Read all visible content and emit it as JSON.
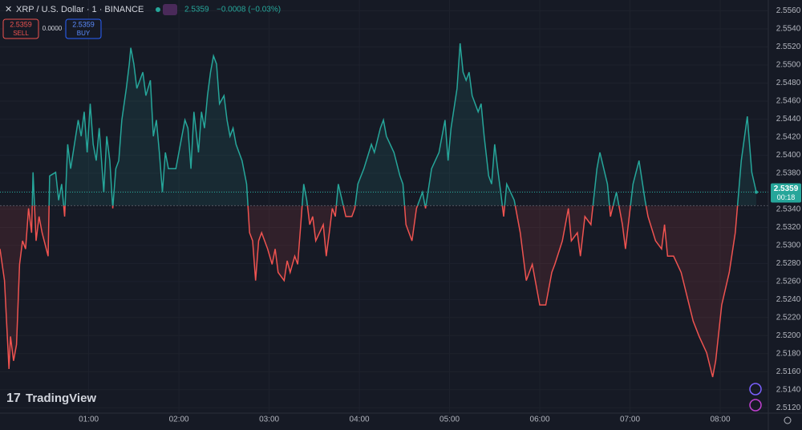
{
  "chart_data": {
    "type": "baseline",
    "title": "XRP / U.S. Dollar · 1 · BINANCE",
    "price": 2.5359,
    "change": "−0.0008 (−0.03%)",
    "sell": {
      "price": 2.5359,
      "label": "SELL"
    },
    "spread": "0.0000",
    "buy": {
      "price": 2.5359,
      "label": "BUY"
    },
    "last_price": 2.5359,
    "countdown": "00:18",
    "watermark": "TradingView",
    "baseline": 2.5344,
    "color_up": "#26a69a",
    "color_down": "#ef5350",
    "grid": true,
    "x": [
      "00:01",
      "00:04",
      "00:07",
      "00:08",
      "00:10",
      "00:12",
      "00:14",
      "00:16",
      "00:18",
      "00:20",
      "00:22",
      "00:23",
      "00:25",
      "00:27",
      "00:29",
      "00:33",
      "00:34",
      "00:38",
      "00:40",
      "00:42",
      "00:44",
      "00:46",
      "00:48",
      "00:53",
      "00:55",
      "00:57",
      "00:59",
      "01:01",
      "01:03",
      "01:05",
      "01:07",
      "01:10",
      "01:12",
      "01:14",
      "01:16",
      "01:18",
      "01:20",
      "01:22",
      "01:25",
      "01:27",
      "01:28",
      "01:30",
      "01:32",
      "01:34",
      "01:36",
      "01:38",
      "01:41",
      "01:43",
      "01:45",
      "01:47",
      "01:49",
      "01:51",
      "01:53",
      "01:58",
      "02:02",
      "02:04",
      "02:06",
      "02:08",
      "02:10",
      "02:13",
      "02:15",
      "02:17",
      "02:19",
      "02:21",
      "02:23",
      "02:25",
      "02:27",
      "02:30",
      "02:32",
      "02:34",
      "02:36",
      "02:38",
      "02:42",
      "02:45",
      "02:47",
      "02:49",
      "02:51",
      "02:53",
      "02:55",
      "02:59",
      "03:02",
      "03:04",
      "03:06",
      "03:10",
      "03:12",
      "03:14",
      "03:17",
      "03:19",
      "03:21",
      "03:23",
      "03:25",
      "03:27",
      "03:29",
      "03:31",
      "03:36",
      "03:38",
      "03:40",
      "03:42",
      "03:44",
      "03:46",
      "03:51",
      "03:55",
      "03:57",
      "03:59",
      "04:03",
      "04:08",
      "04:10",
      "04:14",
      "04:16",
      "04:18",
      "04:23",
      "04:27",
      "04:29",
      "04:31",
      "04:35",
      "04:38",
      "04:42",
      "04:44",
      "04:48",
      "04:53",
      "04:57",
      "04:59",
      "05:01",
      "05:05",
      "05:07",
      "05:09",
      "05:11",
      "05:13",
      "05:15",
      "05:19",
      "05:21",
      "05:23",
      "05:26",
      "05:28",
      "05:30",
      "05:32",
      "05:34",
      "05:36",
      "05:38",
      "05:43",
      "05:47",
      "05:51",
      "05:55",
      "06:00",
      "06:04",
      "06:08",
      "06:10",
      "06:15",
      "06:19",
      "06:21",
      "06:25",
      "06:27",
      "06:30",
      "06:34",
      "06:38",
      "06:40",
      "06:45",
      "06:47",
      "06:51",
      "06:55",
      "06:57",
      "07:02",
      "07:06",
      "07:10",
      "07:12",
      "07:17",
      "07:21",
      "07:23",
      "07:25",
      "07:29",
      "07:34",
      "07:38",
      "07:42",
      "07:46",
      "07:51",
      "07:55",
      "07:57",
      "08:01",
      "08:06",
      "08:10",
      "08:14",
      "08:18",
      "08:21",
      "08:24"
    ],
    "values": [
      2.5296,
      2.5261,
      2.5163,
      2.5199,
      2.5172,
      2.519,
      2.5279,
      2.5305,
      2.5296,
      2.5341,
      2.5314,
      2.5381,
      2.5305,
      2.5332,
      2.5314,
      2.5288,
      2.5377,
      2.5381,
      2.535,
      2.5368,
      2.5332,
      2.5412,
      2.5385,
      2.5439,
      2.5421,
      2.5448,
      2.5403,
      2.5457,
      2.5412,
      2.5394,
      2.543,
      2.5359,
      2.5421,
      2.5394,
      2.5341,
      2.5385,
      2.5394,
      2.5439,
      2.5474,
      2.5501,
      2.5519,
      2.5501,
      2.5474,
      2.5483,
      2.5492,
      2.5466,
      2.5483,
      2.5421,
      2.5439,
      2.5403,
      2.5359,
      2.5403,
      2.5385,
      2.5385,
      2.5421,
      2.5439,
      2.543,
      2.5385,
      2.5448,
      2.5403,
      2.5448,
      2.543,
      2.5466,
      2.5492,
      2.551,
      2.5501,
      2.5457,
      2.5466,
      2.5439,
      2.5421,
      2.543,
      2.5412,
      2.5394,
      2.5368,
      2.5314,
      2.5305,
      2.5261,
      2.5305,
      2.5314,
      2.5296,
      2.5279,
      2.5296,
      2.527,
      2.5261,
      2.5283,
      2.527,
      2.5288,
      2.5279,
      2.5323,
      2.5368,
      2.535,
      2.5323,
      2.5332,
      2.5305,
      2.5323,
      2.5288,
      2.5314,
      2.5341,
      2.5332,
      2.5368,
      2.5332,
      2.5332,
      2.5341,
      2.5368,
      2.5385,
      2.5412,
      2.5403,
      2.543,
      2.5439,
      2.5421,
      2.5403,
      2.5377,
      2.5368,
      2.5323,
      2.5305,
      2.5341,
      2.5359,
      2.5341,
      2.5385,
      2.5403,
      2.5439,
      2.5394,
      2.543,
      2.5474,
      2.5524,
      2.5492,
      2.5483,
      2.5492,
      2.5466,
      2.5448,
      2.5457,
      2.5421,
      2.5377,
      2.5368,
      2.5412,
      2.5385,
      2.5359,
      2.5332,
      2.5368,
      2.535,
      2.5314,
      2.5261,
      2.5279,
      2.5234,
      2.5234,
      2.527,
      2.5279,
      2.5305,
      2.5341,
      2.5305,
      2.5314,
      2.5288,
      2.5332,
      2.5323,
      2.5385,
      2.5403,
      2.5368,
      2.5332,
      2.5359,
      2.5323,
      2.5296,
      2.5368,
      2.5394,
      2.535,
      2.5332,
      2.5305,
      2.5296,
      2.5323,
      2.5288,
      2.5288,
      2.527,
      2.5243,
      2.5216,
      2.5199,
      2.5181,
      2.5154,
      2.5172,
      2.5234,
      2.527,
      2.5314,
      2.5394,
      2.5443,
      2.5381,
      2.5359
    ],
    "xlim": [
      "00:01",
      "08:32"
    ],
    "xticks": [
      "01:00",
      "02:00",
      "03:00",
      "04:00",
      "05:00",
      "06:00",
      "07:00",
      "08:00"
    ],
    "ylim": [
      2.5114,
      2.5572
    ],
    "yticks": [
      {
        "value": 2.512,
        "label": "2.5120"
      },
      {
        "value": 2.514,
        "label": "2.5140"
      },
      {
        "value": 2.516,
        "label": "2.5160"
      },
      {
        "value": 2.518,
        "label": "2.5180"
      },
      {
        "value": 2.52,
        "label": "2.5200"
      },
      {
        "value": 2.522,
        "label": "2.5220"
      },
      {
        "value": 2.524,
        "label": "2.5240"
      },
      {
        "value": 2.526,
        "label": "2.5260"
      },
      {
        "value": 2.528,
        "label": "2.5280"
      },
      {
        "value": 2.53,
        "label": "2.5300"
      },
      {
        "value": 2.532,
        "label": "2.5320"
      },
      {
        "value": 2.534,
        "label": "2.5340"
      },
      {
        "value": 2.536,
        "label": "2.5360"
      },
      {
        "value": 2.538,
        "label": "2.5380"
      },
      {
        "value": 2.54,
        "label": "2.5400"
      },
      {
        "value": 2.542,
        "label": "2.5420"
      },
      {
        "value": 2.544,
        "label": "2.5440"
      },
      {
        "value": 2.546,
        "label": "2.5460"
      },
      {
        "value": 2.548,
        "label": "2.5480"
      },
      {
        "value": 2.55,
        "label": "2.5500"
      },
      {
        "value": 2.552,
        "label": "2.5520"
      },
      {
        "value": 2.554,
        "label": "2.5540"
      },
      {
        "value": 2.556,
        "label": "2.5560"
      }
    ]
  }
}
